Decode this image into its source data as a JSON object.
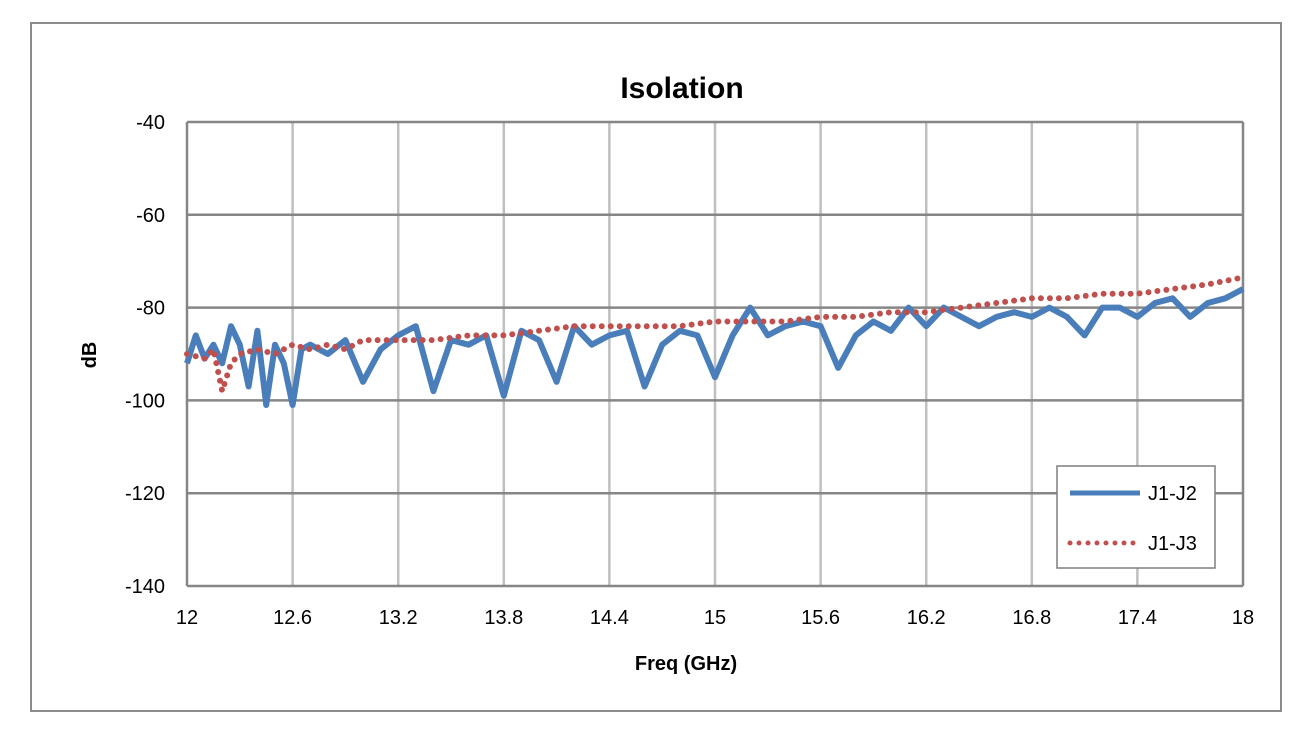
{
  "chart_data": {
    "type": "line",
    "title": "Isolation",
    "xlabel": "Freq (GHz)",
    "ylabel": "dB",
    "xlim": [
      12,
      18
    ],
    "ylim": [
      -140,
      -40
    ],
    "xticks": [
      12,
      12.6,
      13.2,
      13.8,
      14.4,
      15,
      15.6,
      16.2,
      16.8,
      17.4,
      18
    ],
    "xtick_labels": [
      "12",
      "12.6",
      "13.2",
      "13.8",
      "14.4",
      "15",
      "15.6",
      "16.2",
      "16.8",
      "17.4",
      "18"
    ],
    "yticks": [
      -40,
      -60,
      -80,
      -100,
      -120,
      -140
    ],
    "ytick_labels": [
      "-40",
      "-60",
      "-80",
      "-100",
      "-120",
      "-140"
    ],
    "grid": true,
    "legend_position": "bottom-right",
    "series": [
      {
        "name": "J1-J2",
        "color": "#4a7ebb",
        "style": "solid",
        "x": [
          12.0,
          12.05,
          12.1,
          12.15,
          12.2,
          12.25,
          12.3,
          12.35,
          12.4,
          12.45,
          12.5,
          12.55,
          12.6,
          12.65,
          12.7,
          12.8,
          12.9,
          13.0,
          13.1,
          13.2,
          13.3,
          13.4,
          13.5,
          13.6,
          13.7,
          13.8,
          13.9,
          14.0,
          14.1,
          14.2,
          14.3,
          14.4,
          14.5,
          14.6,
          14.7,
          14.8,
          14.9,
          15.0,
          15.1,
          15.2,
          15.3,
          15.4,
          15.5,
          15.6,
          15.7,
          15.8,
          15.9,
          16.0,
          16.1,
          16.2,
          16.3,
          16.4,
          16.5,
          16.6,
          16.7,
          16.8,
          16.9,
          17.0,
          17.1,
          17.2,
          17.3,
          17.4,
          17.5,
          17.6,
          17.7,
          17.8,
          17.9,
          18.0
        ],
        "y": [
          -92,
          -86,
          -91,
          -88,
          -92,
          -84,
          -88,
          -97,
          -85,
          -101,
          -88,
          -92,
          -101,
          -89,
          -88,
          -90,
          -87,
          -96,
          -89,
          -86,
          -84,
          -98,
          -87,
          -88,
          -86,
          -99,
          -85,
          -87,
          -96,
          -84,
          -88,
          -86,
          -85,
          -97,
          -88,
          -85,
          -86,
          -95,
          -86,
          -80,
          -86,
          -84,
          -83,
          -84,
          -93,
          -86,
          -83,
          -85,
          -80,
          -84,
          -80,
          -82,
          -84,
          -82,
          -81,
          -82,
          -80,
          -82,
          -86,
          -80,
          -80,
          -82,
          -79,
          -78,
          -82,
          -79,
          -78,
          -76
        ]
      },
      {
        "name": "J1-J3",
        "color": "#c0504d",
        "style": "dotted",
        "x": [
          12.0,
          12.1,
          12.15,
          12.2,
          12.25,
          12.3,
          12.4,
          12.5,
          12.6,
          12.7,
          12.8,
          12.9,
          13.0,
          13.2,
          13.4,
          13.6,
          13.8,
          14.0,
          14.2,
          14.4,
          14.6,
          14.8,
          15.0,
          15.2,
          15.4,
          15.6,
          15.8,
          16.0,
          16.2,
          16.4,
          16.6,
          16.8,
          17.0,
          17.2,
          17.4,
          17.6,
          17.8,
          18.0
        ],
        "y": [
          -90,
          -91,
          -89,
          -98,
          -92,
          -90,
          -89,
          -90,
          -88,
          -89,
          -88,
          -89,
          -87,
          -87,
          -87,
          -86,
          -86,
          -85,
          -84,
          -84,
          -84,
          -84,
          -83,
          -83,
          -83,
          -82,
          -82,
          -81,
          -81,
          -80,
          -79,
          -78,
          -78,
          -77,
          -77,
          -76,
          -75,
          -73.5
        ]
      }
    ]
  }
}
